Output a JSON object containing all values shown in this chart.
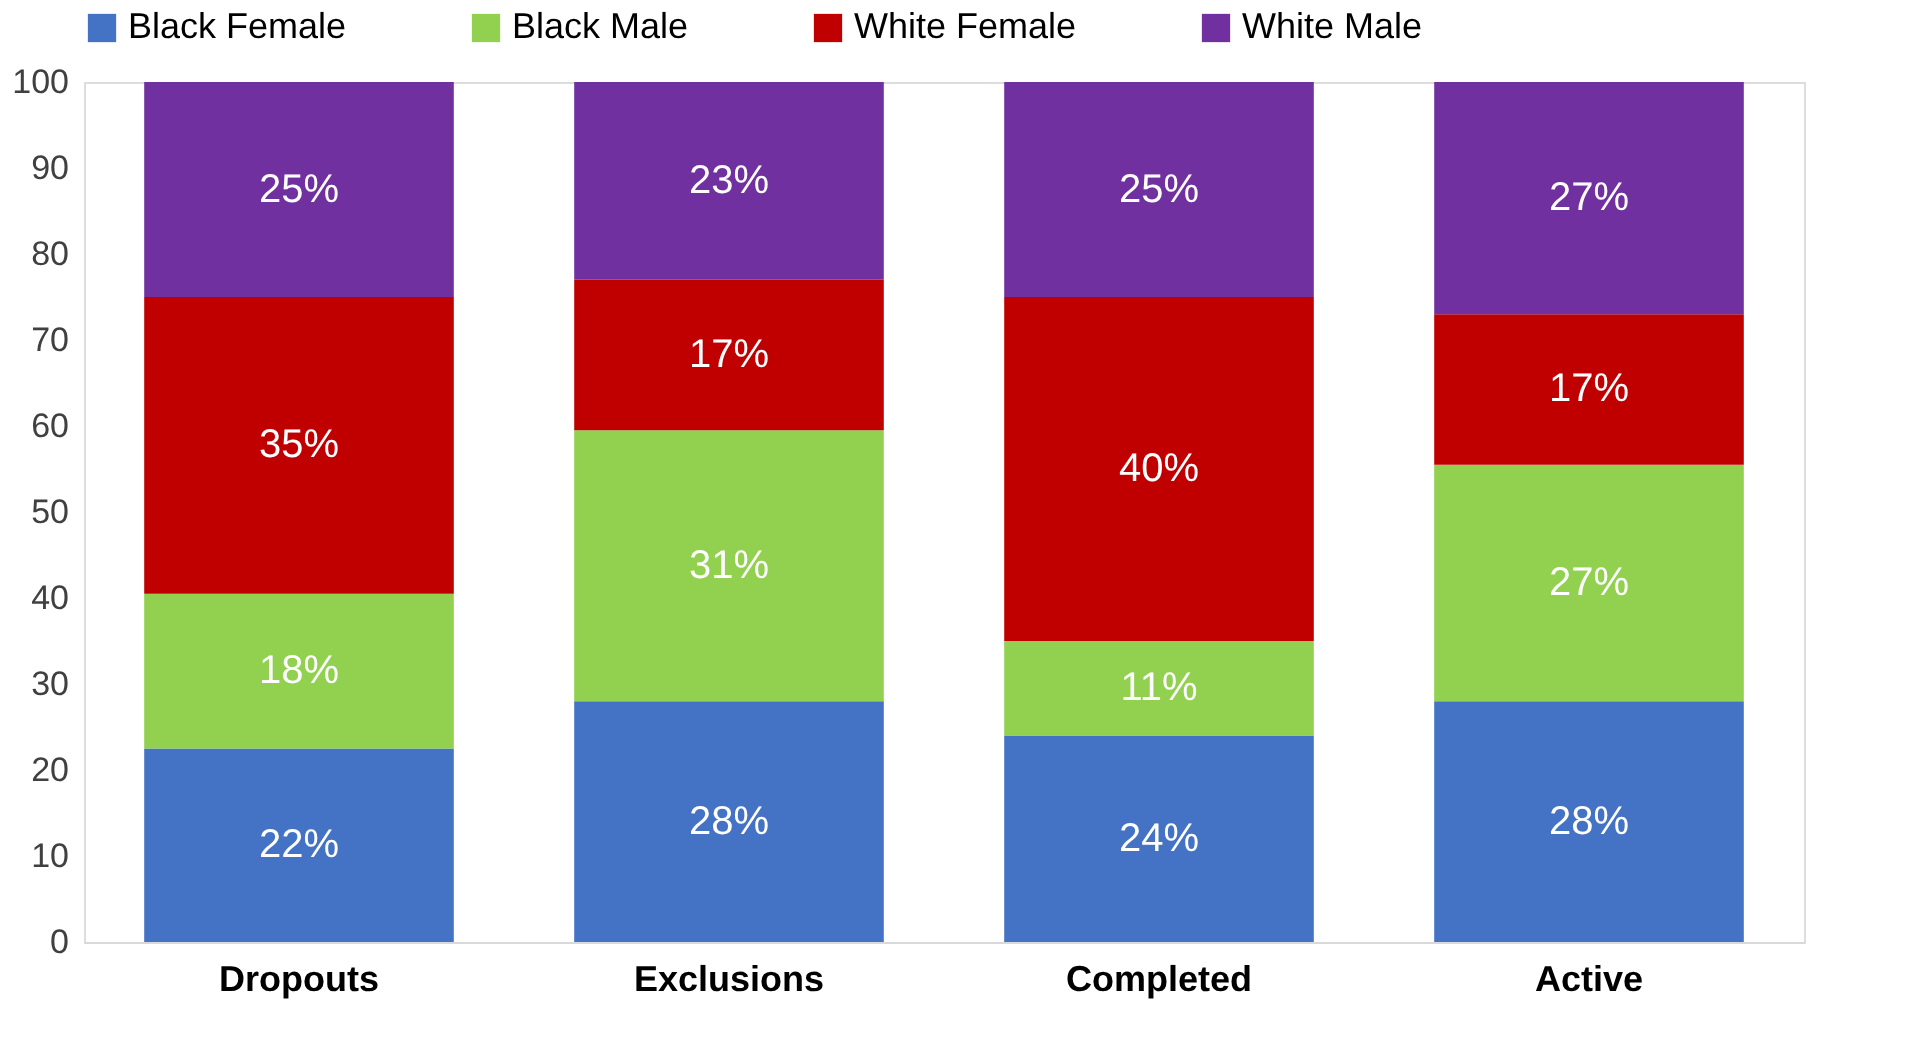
{
  "chart_data": {
    "type": "bar",
    "stacked": true,
    "categories": [
      "Dropouts",
      "Exclusions",
      "Completed",
      "Active"
    ],
    "series": [
      {
        "name": "Black Female",
        "color": "#4472c4",
        "values": [
          22.5,
          28,
          24,
          28
        ],
        "value_labels": [
          "22%",
          "28%",
          "24%",
          "28%"
        ]
      },
      {
        "name": "Black Male",
        "color": "#92d050",
        "values": [
          18,
          31.5,
          11,
          27.5
        ],
        "value_labels": [
          "18%",
          "31%",
          "11%",
          "27%"
        ]
      },
      {
        "name": "White Female",
        "color": "#c00000",
        "values": [
          34.5,
          17.5,
          40,
          17.5
        ],
        "value_labels": [
          "35%",
          "17%",
          "40%",
          "17%"
        ]
      },
      {
        "name": "White Male",
        "color": "#7030a0",
        "values": [
          25,
          23,
          25,
          27
        ],
        "value_labels": [
          "25%",
          "23%",
          "25%",
          "27%"
        ]
      }
    ],
    "ylim": [
      0,
      100
    ],
    "yticks": [
      0,
      10,
      20,
      30,
      40,
      50,
      60,
      70,
      80,
      90,
      100
    ],
    "grid": false,
    "legend": "top"
  }
}
